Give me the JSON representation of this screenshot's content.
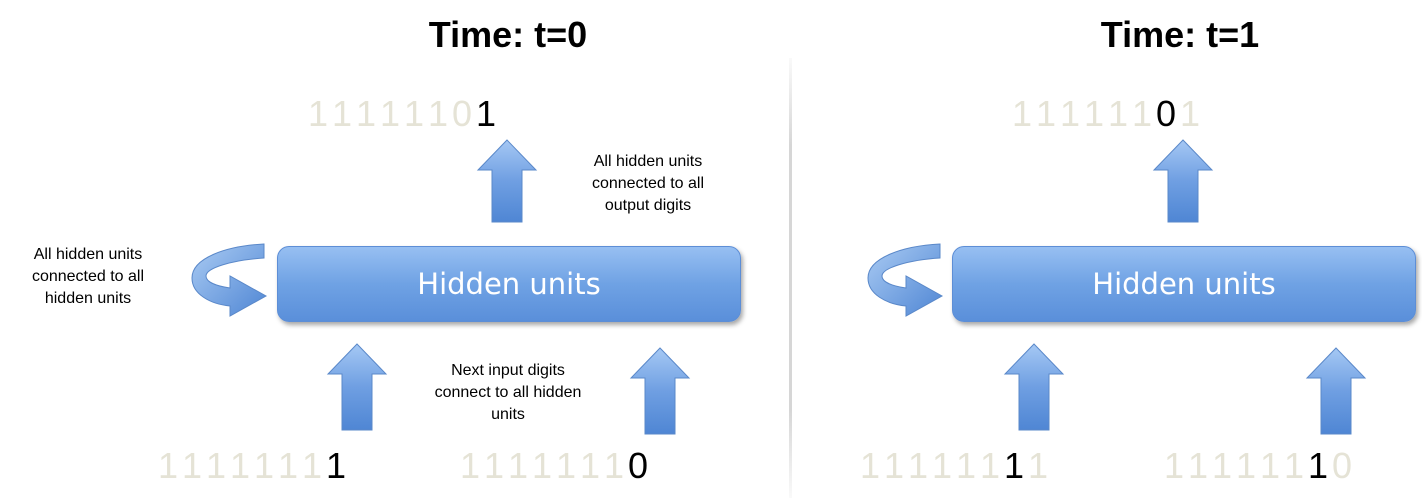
{
  "panels": [
    {
      "title": "Time: t=0",
      "hidden_label": "Hidden units",
      "output_digits": [
        "1",
        "1",
        "1",
        "1",
        "1",
        "1",
        "0",
        "1"
      ],
      "output_active": 7,
      "input_left_digits": [
        "1",
        "1",
        "1",
        "1",
        "1",
        "1",
        "1",
        "1"
      ],
      "input_left_active": 7,
      "input_right_digits": [
        "1",
        "1",
        "1",
        "1",
        "1",
        "1",
        "1",
        "0"
      ],
      "input_right_active": 7
    },
    {
      "title": "Time: t=1",
      "hidden_label": "Hidden units",
      "output_digits": [
        "1",
        "1",
        "1",
        "1",
        "1",
        "1",
        "0",
        "1"
      ],
      "output_active": 6,
      "input_left_digits": [
        "1",
        "1",
        "1",
        "1",
        "1",
        "1",
        "1",
        "1"
      ],
      "input_left_active": 6,
      "input_right_digits": [
        "1",
        "1",
        "1",
        "1",
        "1",
        "1",
        "1",
        "0"
      ],
      "input_right_active": 6
    }
  ],
  "notes": {
    "recurrent": "All hidden units connected to all hidden units",
    "output": "All hidden units connected to all output digits",
    "input": "Next input digits connect to all hidden units"
  },
  "colors": {
    "faded_digit": "#e5e3d6",
    "active_digit": "#000000",
    "box_top": "#97bff2",
    "box_bottom": "#5a8fda"
  }
}
